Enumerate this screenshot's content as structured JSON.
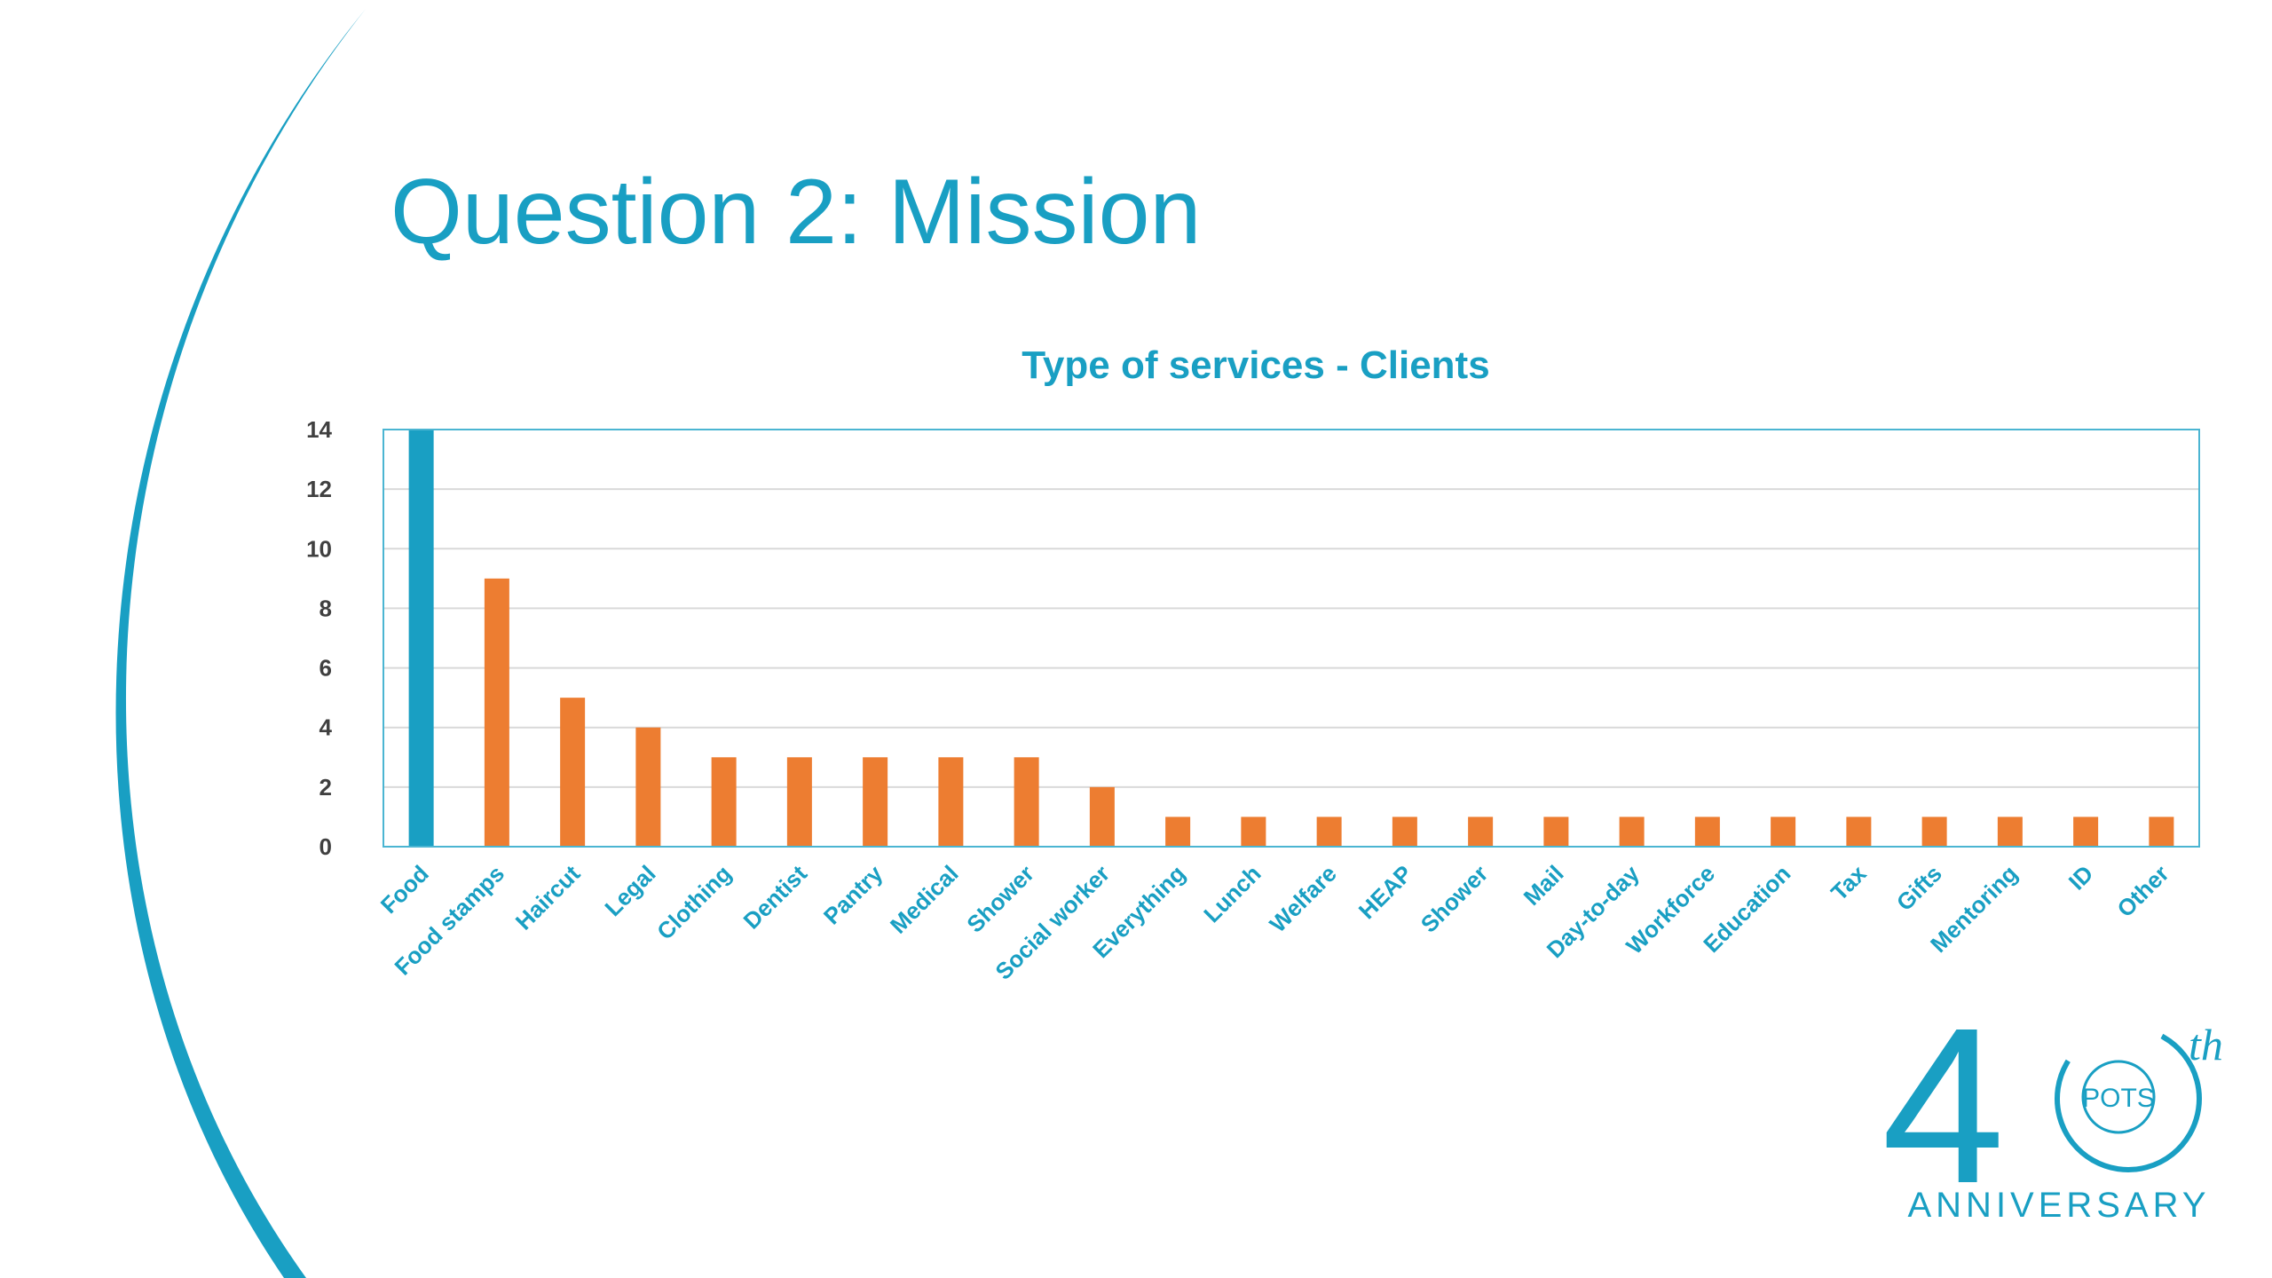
{
  "slide": {
    "title": "Question 2: Mission"
  },
  "colors": {
    "accent": "#199fc3",
    "bar_default": "#ed7d31",
    "bar_highlight": "#199fc3",
    "gridline": "#d9d9d9",
    "plot_border": "#4bb5d2"
  },
  "chart_data": {
    "type": "bar",
    "title": "Type of services - Clients",
    "xlabel": "",
    "ylabel": "",
    "categories": [
      "Food",
      "Food stamps",
      "Haircut",
      "Legal",
      "Clothing",
      "Dentist",
      "Pantry",
      "Medical",
      "Shower",
      "Social worker",
      "Everything",
      "Lunch",
      "Welfare",
      "HEAP",
      "Shower",
      "Mail",
      "Day-to-day",
      "Workforce",
      "Education",
      "Tax",
      "Gifts",
      "Mentoring",
      "ID",
      "Other"
    ],
    "values": [
      14,
      9,
      5,
      4,
      3,
      3,
      3,
      3,
      3,
      2,
      1,
      1,
      1,
      1,
      1,
      1,
      1,
      1,
      1,
      1,
      1,
      1,
      1,
      1
    ],
    "highlighted_index": 0,
    "ylim": [
      0,
      14
    ],
    "yticks": [
      0,
      2,
      4,
      6,
      8,
      10,
      12,
      14
    ],
    "grid": true,
    "legend": "none"
  },
  "logo": {
    "number": "4",
    "badge_text": "POTS",
    "superscript": "th",
    "caption": "ANNIVERSARY"
  }
}
